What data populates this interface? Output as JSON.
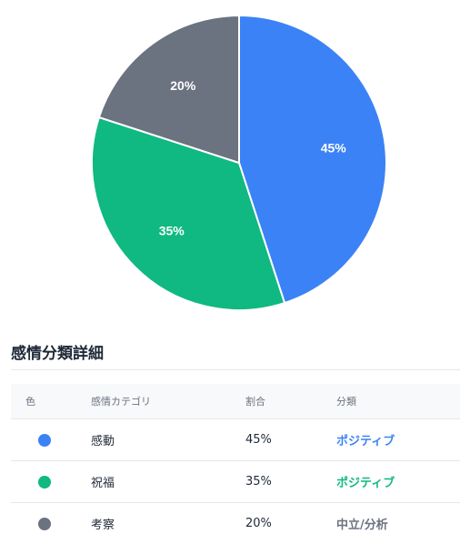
{
  "chart_data": {
    "type": "pie",
    "title": "",
    "categories": [
      "感動",
      "祝福",
      "考察"
    ],
    "values": [
      45,
      35,
      20
    ],
    "colors": [
      "#3b82f6",
      "#10b981",
      "#6b7280"
    ],
    "slice_labels": [
      "45%",
      "35%",
      "20%"
    ],
    "start_angle": "12 o'clock",
    "direction": "clockwise",
    "legend": "none"
  },
  "table": {
    "title": "感情分類詳細",
    "headers": {
      "color": "色",
      "category": "感情カテゴリ",
      "ratio": "割合",
      "classification": "分類"
    },
    "rows": [
      {
        "color": "#3b82f6",
        "color_icon": "blue-dot-icon",
        "category": "感動",
        "ratio": "45%",
        "classification": "ポジティブ",
        "classification_color": "#3b82f6"
      },
      {
        "color": "#10b981",
        "color_icon": "green-dot-icon",
        "category": "祝福",
        "ratio": "35%",
        "classification": "ポジティブ",
        "classification_color": "#10b981"
      },
      {
        "color": "#6b7280",
        "color_icon": "gray-dot-icon",
        "category": "考察",
        "ratio": "20%",
        "classification": "中立/分析",
        "classification_color": "#6b7280"
      }
    ]
  }
}
